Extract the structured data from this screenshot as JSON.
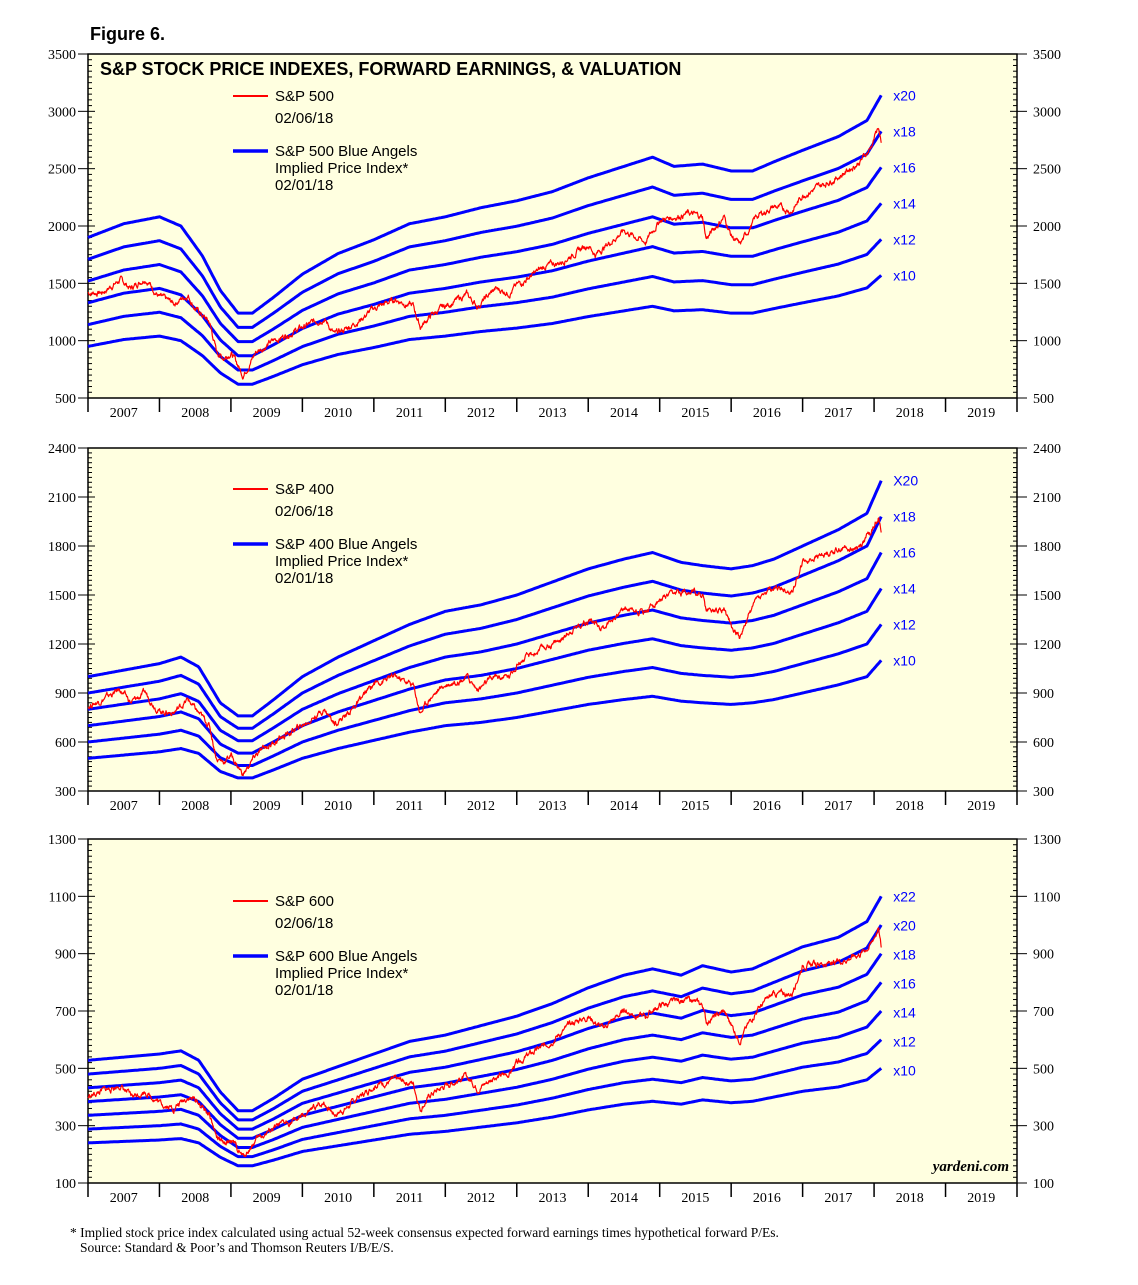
{
  "figure_label": "Figure 6.",
  "chart_title": "S&P STOCK PRICE INDEXES, FORWARD EARNINGS, & VALUATION",
  "watermark": "yardeni.com",
  "footnote": "* Implied stock price index calculated using actual 52-week consensus expected forward earnings times hypothetical forward P/Es.",
  "source": "Source: Standard & Poor’s and Thomson Reuters I/B/E/S.",
  "colors": {
    "price": "#ff0000",
    "angels": "#0000ff",
    "background": "#ffffe0",
    "label": "#0000ff"
  },
  "chart_data": [
    {
      "type": "line",
      "index_name": "S&P 500",
      "legend": {
        "price_label": "S&P 500",
        "price_date": "02/06/18",
        "angels_label": "S&P 500 Blue Angels",
        "angels_label2": "Implied Price Index*",
        "angels_date": "02/01/18"
      },
      "x_range": [
        2007,
        2020
      ],
      "x_ticks": [
        "2007",
        "2008",
        "2009",
        "2010",
        "2011",
        "2012",
        "2013",
        "2014",
        "2015",
        "2016",
        "2017",
        "2018",
        "2019"
      ],
      "ylim": [
        500,
        3500
      ],
      "y_ticks": [
        500,
        1000,
        1500,
        2000,
        2500,
        3000,
        3500
      ],
      "earnings": [
        [
          2007,
          95
        ],
        [
          2007.5,
          101
        ],
        [
          2008,
          104
        ],
        [
          2008.3,
          100
        ],
        [
          2008.6,
          87
        ],
        [
          2008.85,
          72
        ],
        [
          2009.1,
          62
        ],
        [
          2009.3,
          62
        ],
        [
          2009.6,
          69
        ],
        [
          2010,
          79
        ],
        [
          2010.5,
          88
        ],
        [
          2011,
          94
        ],
        [
          2011.5,
          101
        ],
        [
          2012,
          104
        ],
        [
          2012.5,
          108
        ],
        [
          2013,
          111
        ],
        [
          2013.5,
          115
        ],
        [
          2014,
          121
        ],
        [
          2014.5,
          126
        ],
        [
          2014.9,
          130
        ],
        [
          2015.2,
          126
        ],
        [
          2015.6,
          127
        ],
        [
          2016,
          124
        ],
        [
          2016.3,
          124
        ],
        [
          2016.6,
          128
        ],
        [
          2017,
          133
        ],
        [
          2017.5,
          139
        ],
        [
          2017.9,
          146
        ],
        [
          2018.1,
          157
        ]
      ],
      "multiples": [
        10,
        12,
        14,
        16,
        18,
        20
      ],
      "multiple_labels": [
        "x10",
        "x12",
        "x14",
        "x16",
        "x18",
        "x20"
      ],
      "price": [
        [
          2007,
          1418
        ],
        [
          2007.2,
          1420
        ],
        [
          2007.45,
          1530
        ],
        [
          2007.6,
          1455
        ],
        [
          2007.8,
          1550
        ],
        [
          2008,
          1380
        ],
        [
          2008.2,
          1325
        ],
        [
          2008.4,
          1400
        ],
        [
          2008.5,
          1280
        ],
        [
          2008.7,
          1160
        ],
        [
          2008.8,
          900
        ],
        [
          2008.9,
          850
        ],
        [
          2009,
          900
        ],
        [
          2009.17,
          700
        ],
        [
          2009.35,
          900
        ],
        [
          2009.6,
          1000
        ],
        [
          2010,
          1115
        ],
        [
          2010.3,
          1200
        ],
        [
          2010.45,
          1050
        ],
        [
          2010.6,
          1100
        ],
        [
          2010.8,
          1180
        ],
        [
          2011,
          1280
        ],
        [
          2011.3,
          1360
        ],
        [
          2011.55,
          1300
        ],
        [
          2011.65,
          1120
        ],
        [
          2011.8,
          1220
        ],
        [
          2012,
          1300
        ],
        [
          2012.3,
          1400
        ],
        [
          2012.45,
          1300
        ],
        [
          2012.7,
          1450
        ],
        [
          2012.9,
          1420
        ],
        [
          2013,
          1480
        ],
        [
          2013.4,
          1650
        ],
        [
          2013.6,
          1680
        ],
        [
          2013.8,
          1760
        ],
        [
          2014,
          1840
        ],
        [
          2014.1,
          1750
        ],
        [
          2014.5,
          1960
        ],
        [
          2014.8,
          1860
        ],
        [
          2015,
          2050
        ],
        [
          2015.4,
          2110
        ],
        [
          2015.6,
          2080
        ],
        [
          2015.65,
          1890
        ],
        [
          2015.9,
          2080
        ],
        [
          2016,
          1920
        ],
        [
          2016.12,
          1830
        ],
        [
          2016.35,
          2080
        ],
        [
          2016.6,
          2170
        ],
        [
          2016.85,
          2130
        ],
        [
          2017,
          2270
        ],
        [
          2017.5,
          2430
        ],
        [
          2017.8,
          2560
        ],
        [
          2017.95,
          2680
        ],
        [
          2018.06,
          2870
        ],
        [
          2018.1,
          2690
        ]
      ]
    },
    {
      "type": "line",
      "index_name": "S&P 400",
      "legend": {
        "price_label": "S&P 400",
        "price_date": "02/06/18",
        "angels_label": "S&P 400 Blue Angels",
        "angels_label2": "Implied Price Index*",
        "angels_date": "02/01/18"
      },
      "x_range": [
        2007,
        2020
      ],
      "x_ticks": [
        "2007",
        "2008",
        "2009",
        "2010",
        "2011",
        "2012",
        "2013",
        "2014",
        "2015",
        "2016",
        "2017",
        "2018",
        "2019"
      ],
      "ylim": [
        300,
        2400
      ],
      "y_ticks": [
        300,
        600,
        900,
        1200,
        1500,
        1800,
        2100,
        2400
      ],
      "earnings": [
        [
          2007,
          50
        ],
        [
          2007.5,
          52
        ],
        [
          2008,
          54
        ],
        [
          2008.3,
          56
        ],
        [
          2008.55,
          53
        ],
        [
          2008.85,
          42
        ],
        [
          2009.1,
          38
        ],
        [
          2009.3,
          38
        ],
        [
          2009.6,
          43
        ],
        [
          2010,
          50
        ],
        [
          2010.5,
          56
        ],
        [
          2011,
          61
        ],
        [
          2011.5,
          66
        ],
        [
          2012,
          70
        ],
        [
          2012.5,
          72
        ],
        [
          2013,
          75
        ],
        [
          2013.5,
          79
        ],
        [
          2014,
          83
        ],
        [
          2014.5,
          86
        ],
        [
          2014.9,
          88
        ],
        [
          2015.3,
          85
        ],
        [
          2015.6,
          84
        ],
        [
          2016,
          83
        ],
        [
          2016.3,
          84
        ],
        [
          2016.6,
          86
        ],
        [
          2017,
          90
        ],
        [
          2017.5,
          95
        ],
        [
          2017.9,
          100
        ],
        [
          2018.1,
          110
        ]
      ],
      "multiples": [
        10,
        12,
        14,
        16,
        18,
        20
      ],
      "multiple_labels": [
        "x10",
        "x12",
        "x14",
        "x16",
        "x18",
        "X20"
      ],
      "price": [
        [
          2007,
          820
        ],
        [
          2007.2,
          860
        ],
        [
          2007.45,
          920
        ],
        [
          2007.6,
          840
        ],
        [
          2007.8,
          900
        ],
        [
          2008,
          790
        ],
        [
          2008.2,
          780
        ],
        [
          2008.4,
          860
        ],
        [
          2008.5,
          800
        ],
        [
          2008.7,
          700
        ],
        [
          2008.8,
          500
        ],
        [
          2008.9,
          480
        ],
        [
          2009,
          520
        ],
        [
          2009.17,
          400
        ],
        [
          2009.35,
          520
        ],
        [
          2009.6,
          600
        ],
        [
          2010,
          700
        ],
        [
          2010.3,
          800
        ],
        [
          2010.45,
          720
        ],
        [
          2010.6,
          760
        ],
        [
          2010.8,
          850
        ],
        [
          2011,
          960
        ],
        [
          2011.3,
          1000
        ],
        [
          2011.55,
          950
        ],
        [
          2011.65,
          780
        ],
        [
          2011.8,
          880
        ],
        [
          2012,
          950
        ],
        [
          2012.3,
          1000
        ],
        [
          2012.45,
          920
        ],
        [
          2012.7,
          1000
        ],
        [
          2012.9,
          1000
        ],
        [
          2013,
          1080
        ],
        [
          2013.4,
          1180
        ],
        [
          2013.6,
          1220
        ],
        [
          2013.8,
          1300
        ],
        [
          2014,
          1350
        ],
        [
          2014.2,
          1300
        ],
        [
          2014.5,
          1420
        ],
        [
          2014.8,
          1400
        ],
        [
          2015,
          1470
        ],
        [
          2015.4,
          1530
        ],
        [
          2015.6,
          1500
        ],
        [
          2015.65,
          1400
        ],
        [
          2015.9,
          1420
        ],
        [
          2016,
          1320
        ],
        [
          2016.12,
          1240
        ],
        [
          2016.35,
          1480
        ],
        [
          2016.6,
          1540
        ],
        [
          2016.85,
          1520
        ],
        [
          2017,
          1700
        ],
        [
          2017.5,
          1780
        ],
        [
          2017.8,
          1800
        ],
        [
          2017.95,
          1880
        ],
        [
          2018.06,
          1990
        ],
        [
          2018.1,
          1880
        ]
      ]
    },
    {
      "type": "line",
      "index_name": "S&P 600",
      "legend": {
        "price_label": "S&P 600",
        "price_date": "02/06/18",
        "angels_label": "S&P 600 Blue Angels",
        "angels_label2": "Implied Price Index*",
        "angels_date": "02/01/18"
      },
      "x_range": [
        2007,
        2020
      ],
      "x_ticks": [
        "2007",
        "2008",
        "2009",
        "2010",
        "2011",
        "2012",
        "2013",
        "2014",
        "2015",
        "2016",
        "2017",
        "2018",
        "2019"
      ],
      "ylim": [
        100,
        1300
      ],
      "y_ticks": [
        100,
        300,
        500,
        700,
        900,
        1100,
        1300
      ],
      "earnings": [
        [
          2007,
          24
        ],
        [
          2007.5,
          24.5
        ],
        [
          2008,
          25
        ],
        [
          2008.3,
          25.5
        ],
        [
          2008.55,
          24
        ],
        [
          2008.85,
          19
        ],
        [
          2009.1,
          16
        ],
        [
          2009.3,
          16
        ],
        [
          2009.6,
          18
        ],
        [
          2010,
          21
        ],
        [
          2010.5,
          23
        ],
        [
          2011,
          25
        ],
        [
          2011.5,
          27
        ],
        [
          2012,
          28
        ],
        [
          2012.5,
          29.5
        ],
        [
          2013,
          31
        ],
        [
          2013.5,
          33
        ],
        [
          2014,
          35.5
        ],
        [
          2014.5,
          37.5
        ],
        [
          2014.9,
          38.5
        ],
        [
          2015.3,
          37.5
        ],
        [
          2015.6,
          39
        ],
        [
          2016,
          38
        ],
        [
          2016.3,
          38.5
        ],
        [
          2016.6,
          40
        ],
        [
          2017,
          42
        ],
        [
          2017.5,
          43.5
        ],
        [
          2017.9,
          46
        ],
        [
          2018.1,
          50
        ]
      ],
      "multiples": [
        10,
        12,
        14,
        16,
        18,
        20,
        22
      ],
      "multiple_labels": [
        "x10",
        "x12",
        "x14",
        "x16",
        "x18",
        "x20",
        "x22"
      ],
      "price": [
        [
          2007,
          400
        ],
        [
          2007.2,
          420
        ],
        [
          2007.45,
          440
        ],
        [
          2007.6,
          400
        ],
        [
          2007.8,
          420
        ],
        [
          2008,
          380
        ],
        [
          2008.2,
          360
        ],
        [
          2008.4,
          400
        ],
        [
          2008.5,
          390
        ],
        [
          2008.7,
          340
        ],
        [
          2008.8,
          260
        ],
        [
          2008.9,
          230
        ],
        [
          2009,
          250
        ],
        [
          2009.17,
          190
        ],
        [
          2009.35,
          250
        ],
        [
          2009.6,
          290
        ],
        [
          2010,
          330
        ],
        [
          2010.3,
          380
        ],
        [
          2010.45,
          340
        ],
        [
          2010.6,
          360
        ],
        [
          2010.8,
          400
        ],
        [
          2011,
          440
        ],
        [
          2011.3,
          460
        ],
        [
          2011.55,
          450
        ],
        [
          2011.65,
          360
        ],
        [
          2011.8,
          410
        ],
        [
          2012,
          440
        ],
        [
          2012.3,
          470
        ],
        [
          2012.45,
          430
        ],
        [
          2012.7,
          470
        ],
        [
          2012.9,
          480
        ],
        [
          2013,
          520
        ],
        [
          2013.4,
          580
        ],
        [
          2013.6,
          620
        ],
        [
          2013.8,
          660
        ],
        [
          2014,
          680
        ],
        [
          2014.2,
          640
        ],
        [
          2014.5,
          700
        ],
        [
          2014.8,
          680
        ],
        [
          2015,
          720
        ],
        [
          2015.4,
          740
        ],
        [
          2015.6,
          720
        ],
        [
          2015.65,
          660
        ],
        [
          2015.9,
          700
        ],
        [
          2016,
          650
        ],
        [
          2016.12,
          600
        ],
        [
          2016.35,
          700
        ],
        [
          2016.6,
          760
        ],
        [
          2016.85,
          760
        ],
        [
          2017,
          860
        ],
        [
          2017.5,
          870
        ],
        [
          2017.8,
          900
        ],
        [
          2017.95,
          930
        ],
        [
          2018.06,
          990
        ],
        [
          2018.1,
          920
        ]
      ]
    }
  ]
}
